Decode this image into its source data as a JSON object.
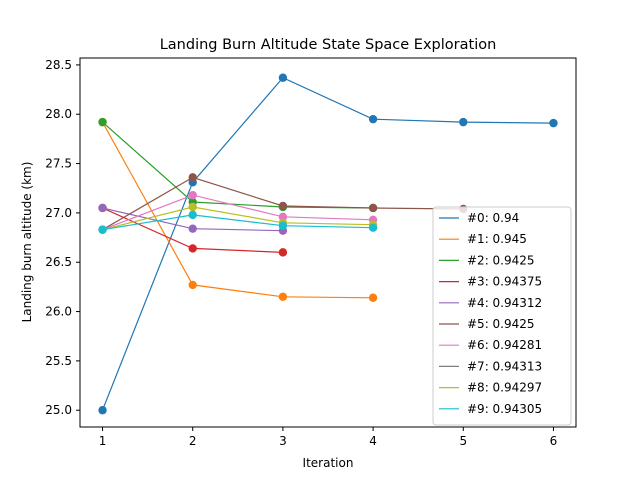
{
  "chart_data": {
    "type": "line",
    "title": "Landing Burn Altitude State Space Exploration",
    "xlabel": "Iteration",
    "ylabel": "Landing burn altitude (km)",
    "xlim": [
      0.75,
      6.25
    ],
    "ylim": [
      24.83,
      28.57
    ],
    "xticks": [
      1,
      2,
      3,
      4,
      5,
      6
    ],
    "yticks": [
      25.0,
      25.5,
      26.0,
      26.5,
      27.0,
      27.5,
      28.0,
      28.5
    ],
    "xtick_labels": [
      "1",
      "2",
      "3",
      "4",
      "5",
      "6"
    ],
    "ytick_labels": [
      "25.0",
      "25.5",
      "26.0",
      "26.5",
      "27.0",
      "27.5",
      "28.0",
      "28.5"
    ],
    "grid": false,
    "legend_position": "lower-right",
    "series": [
      {
        "name": "#0: 0.94",
        "color": "#1f77b4",
        "x": [
          1,
          2,
          3,
          4,
          5,
          6
        ],
        "y": [
          25.0,
          27.31,
          28.37,
          27.95,
          27.92,
          27.91
        ]
      },
      {
        "name": "#1: 0.945",
        "color": "#ff7f0e",
        "x": [
          1,
          2,
          3,
          4
        ],
        "y": [
          27.92,
          26.27,
          26.15,
          26.14
        ]
      },
      {
        "name": "#2: 0.9425",
        "color": "#2ca02c",
        "x": [
          1,
          2,
          3,
          4
        ],
        "y": [
          27.92,
          27.11,
          27.06,
          27.05
        ]
      },
      {
        "name": "#3: 0.94375",
        "color": "#d62728",
        "x": [
          1,
          2,
          3
        ],
        "y": [
          27.05,
          26.64,
          26.6
        ]
      },
      {
        "name": "#4: 0.94312",
        "color": "#9467bd",
        "x": [
          1,
          2,
          3
        ],
        "y": [
          27.05,
          26.84,
          26.82
        ]
      },
      {
        "name": "#5: 0.9425",
        "color": "#8c564b",
        "x": [
          1,
          2,
          3,
          4,
          5
        ],
        "y": [
          26.83,
          27.36,
          27.07,
          27.05,
          27.04
        ]
      },
      {
        "name": "#6: 0.94281",
        "color": "#e377c2",
        "x": [
          1,
          2,
          3,
          4
        ],
        "y": [
          26.83,
          27.18,
          26.96,
          26.93
        ]
      },
      {
        "name": "#7: 0.94313",
        "color": "#7f7f7f",
        "x": [
          1
        ],
        "y": [
          26.83
        ]
      },
      {
        "name": "#8: 0.94297",
        "color": "#bcbd22",
        "x": [
          1,
          2,
          3,
          4
        ],
        "y": [
          26.83,
          27.06,
          26.9,
          26.88
        ]
      },
      {
        "name": "#9: 0.94305",
        "color": "#17becf",
        "x": [
          1,
          2,
          3,
          4
        ],
        "y": [
          26.83,
          26.98,
          26.87,
          26.85
        ]
      }
    ]
  }
}
